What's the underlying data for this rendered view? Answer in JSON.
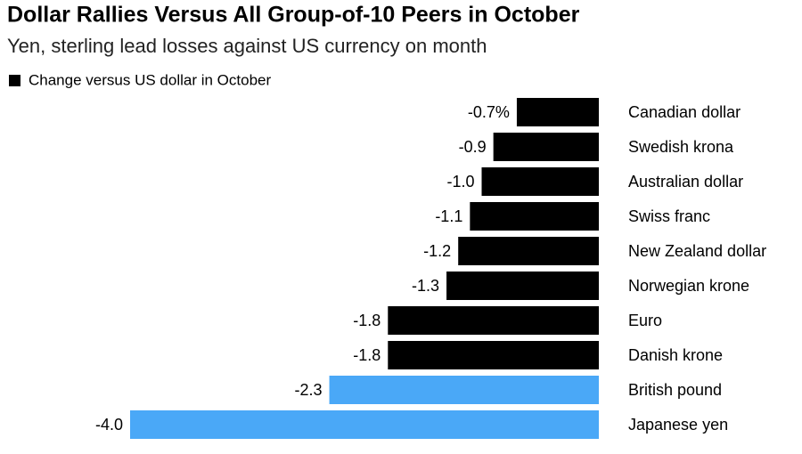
{
  "chart_data": {
    "type": "bar",
    "orientation": "horizontal",
    "title": "Dollar Rallies Versus All Group-of-10 Peers in October",
    "subtitle": "Yen, sterling lead losses against US currency on month",
    "categories": [
      "Canadian dollar",
      "Swedish krona",
      "Australian dollar",
      "Swiss franc",
      "New Zealand dollar",
      "Norwegian krone",
      "Euro",
      "Danish krone",
      "British pound",
      "Japanese yen"
    ],
    "series": [
      {
        "name": "Change versus US dollar in October",
        "color": "#000000",
        "values": [
          -0.7,
          -0.9,
          -1.0,
          -1.1,
          -1.2,
          -1.3,
          -1.8,
          -1.8,
          -2.3,
          -4.0
        ],
        "value_labels": [
          "-0.7%",
          "-0.9",
          "-1.0",
          "-1.1",
          "-1.2",
          "-1.3",
          "-1.8",
          "-1.8",
          "-2.3",
          "-4.0"
        ],
        "colors": [
          "#000000",
          "#000000",
          "#000000",
          "#000000",
          "#000000",
          "#000000",
          "#000000",
          "#000000",
          "#4aa8f7",
          "#4aa8f7"
        ]
      }
    ],
    "xlim": [
      -4,
      0
    ]
  }
}
